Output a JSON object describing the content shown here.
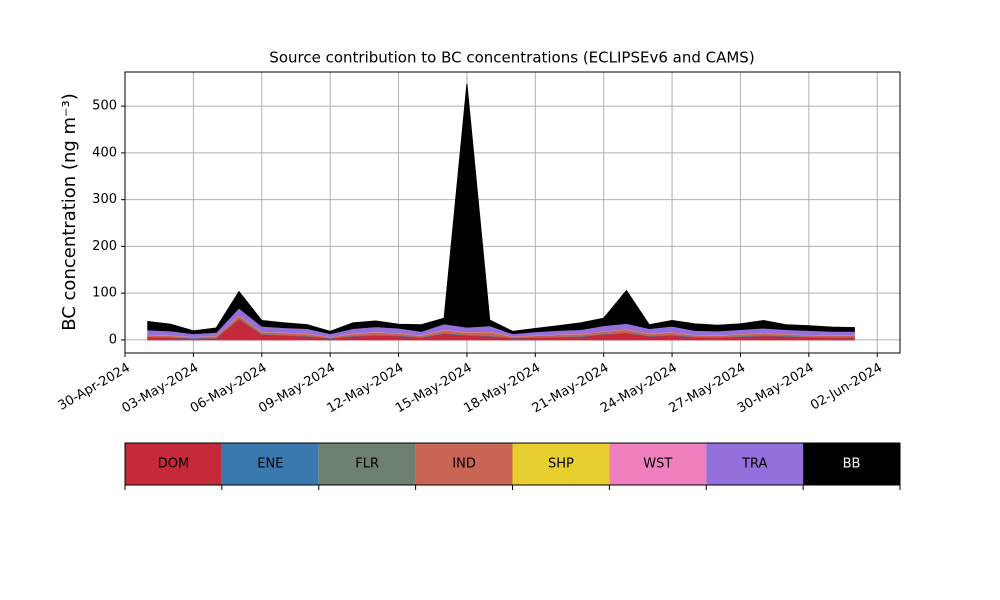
{
  "chart_data": {
    "type": "stacked_area",
    "title": "Source contribution to BC concentrations (ECLIPSEv6 and CAMS)",
    "y_label": "BC concentration (ng m⁻³)",
    "x": [
      "2024-05-01",
      "2024-05-02",
      "2024-05-03",
      "2024-05-04",
      "2024-05-05",
      "2024-05-06",
      "2024-05-07",
      "2024-05-08",
      "2024-05-09",
      "2024-05-10",
      "2024-05-11",
      "2024-05-12",
      "2024-05-13",
      "2024-05-14",
      "2024-05-15",
      "2024-05-16",
      "2024-05-17",
      "2024-05-18",
      "2024-05-19",
      "2024-05-20",
      "2024-05-21",
      "2024-05-22",
      "2024-05-23",
      "2024-05-24",
      "2024-05-25",
      "2024-05-26",
      "2024-05-27",
      "2024-05-28",
      "2024-05-29",
      "2024-05-30",
      "2024-05-31",
      "2024-06-01"
    ],
    "series": [
      {
        "name": "DOM",
        "color": "#c62a3a",
        "values": [
          6,
          5,
          3,
          4,
          45,
          12,
          10,
          8,
          3,
          8,
          10,
          9,
          5,
          14,
          10,
          8,
          4,
          5,
          6,
          7,
          12,
          15,
          8,
          10,
          6,
          5,
          7,
          9,
          8,
          6,
          5,
          5
        ]
      },
      {
        "name": "ENE",
        "color": "#3a78b0",
        "values": [
          1,
          1,
          1,
          1,
          1,
          1,
          1,
          1,
          1,
          1,
          1,
          1,
          1,
          1,
          1,
          1,
          1,
          1,
          1,
          1,
          1,
          1,
          1,
          1,
          1,
          1,
          1,
          1,
          1,
          1,
          1,
          1
        ]
      },
      {
        "name": "FLR",
        "color": "#6e8070",
        "values": [
          0.5,
          0.5,
          0.5,
          0.5,
          0.5,
          0.5,
          0.5,
          0.5,
          0.5,
          0.5,
          0.5,
          0.5,
          0.5,
          0.5,
          0.5,
          0.5,
          0.5,
          0.5,
          0.5,
          0.5,
          0.5,
          0.5,
          0.5,
          0.5,
          0.5,
          0.5,
          0.5,
          0.5,
          0.5,
          0.5,
          0.5,
          0.5
        ]
      },
      {
        "name": "IND",
        "color": "#c96555",
        "values": [
          3,
          3,
          2,
          3,
          6,
          4,
          4,
          4,
          2,
          4,
          5,
          4,
          3,
          6,
          5,
          8,
          2,
          3,
          4,
          4,
          5,
          6,
          4,
          5,
          3,
          3,
          4,
          4,
          3,
          3,
          3,
          3
        ]
      },
      {
        "name": "SHP",
        "color": "#e6cf2e",
        "values": [
          0.3,
          0.3,
          0.3,
          0.3,
          0.3,
          0.3,
          0.3,
          0.3,
          0.3,
          0.3,
          0.3,
          0.3,
          0.3,
          0.3,
          0.3,
          0.3,
          0.3,
          0.3,
          0.3,
          0.3,
          0.3,
          0.3,
          0.3,
          0.3,
          0.3,
          0.3,
          0.3,
          0.3,
          0.3,
          0.3,
          0.3,
          0.3
        ]
      },
      {
        "name": "WST",
        "color": "#f07fbf",
        "values": [
          0.6,
          0.6,
          0.6,
          0.6,
          0.6,
          0.6,
          0.6,
          0.6,
          0.6,
          0.6,
          0.6,
          0.6,
          0.6,
          0.6,
          0.6,
          0.6,
          0.6,
          0.6,
          0.6,
          0.6,
          0.6,
          0.6,
          0.6,
          0.6,
          0.6,
          0.6,
          0.6,
          0.6,
          0.6,
          0.6,
          0.6,
          0.6
        ]
      },
      {
        "name": "TRA",
        "color": "#9370db",
        "values": [
          10,
          9,
          6,
          7,
          15,
          11,
          10,
          10,
          6,
          10,
          11,
          10,
          8,
          12,
          10,
          12,
          5,
          7,
          8,
          9,
          11,
          12,
          10,
          12,
          9,
          9,
          9,
          10,
          9,
          9,
          8,
          8
        ]
      },
      {
        "name": "BB",
        "color": "#000000",
        "values": [
          18,
          14,
          6,
          9,
          35,
          12,
          10,
          8,
          5,
          12,
          12,
          8,
          14,
          12,
          520,
          12,
          5,
          7,
          10,
          14,
          16,
          70,
          8,
          12,
          14,
          12,
          12,
          16,
          10,
          10,
          9,
          8
        ]
      }
    ],
    "xlim": [
      "2024-04-30",
      "2024-06-03"
    ],
    "xticks": [
      {
        "value": "2024-04-30",
        "label": "30-Apr-2024"
      },
      {
        "value": "2024-05-03",
        "label": "03-May-2024"
      },
      {
        "value": "2024-05-06",
        "label": "06-May-2024"
      },
      {
        "value": "2024-05-09",
        "label": "09-May-2024"
      },
      {
        "value": "2024-05-12",
        "label": "12-May-2024"
      },
      {
        "value": "2024-05-15",
        "label": "15-May-2024"
      },
      {
        "value": "2024-05-18",
        "label": "18-May-2024"
      },
      {
        "value": "2024-05-21",
        "label": "21-May-2024"
      },
      {
        "value": "2024-05-24",
        "label": "24-May-2024"
      },
      {
        "value": "2024-05-27",
        "label": "27-May-2024"
      },
      {
        "value": "2024-05-30",
        "label": "30-May-2024"
      },
      {
        "value": "2024-06-02",
        "label": "02-Jun-2024"
      }
    ],
    "ylim": [
      -28,
      573
    ],
    "yticks": [
      0,
      100,
      200,
      300,
      400,
      500
    ],
    "grid": true
  }
}
